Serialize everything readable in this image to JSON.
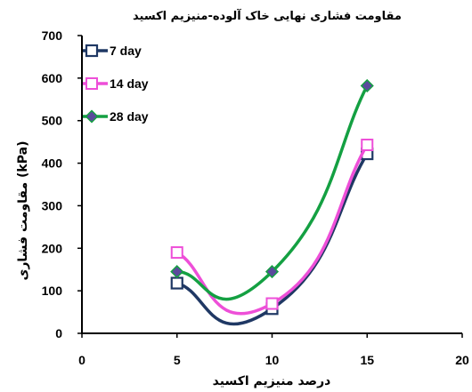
{
  "chart_data": {
    "type": "scatter",
    "title": "مقاومت فشاری نهایی خاک آلوده-منیزیم اکسید",
    "xlabel": "درصد منیزیم اکسید",
    "ylabel": "مقاومت فشاری (kPa)",
    "xlim": [
      0,
      20
    ],
    "ylim": [
      0,
      700
    ],
    "x_ticks": [
      "0",
      "5",
      "10",
      "15",
      "20"
    ],
    "y_ticks": [
      "0",
      "100",
      "200",
      "300",
      "400",
      "500",
      "600",
      "700"
    ],
    "grid": false,
    "legend_position": "top-left",
    "smoothed_lines": true,
    "series": [
      {
        "name": "7 day",
        "color": "#1f3864",
        "marker": "square",
        "x": [
          5,
          10,
          15
        ],
        "y": [
          118,
          58,
          422
        ]
      },
      {
        "name": "14 day",
        "color": "#ee4fd8",
        "marker": "square-hollow",
        "x": [
          5,
          10,
          15
        ],
        "y": [
          190,
          70,
          443
        ]
      },
      {
        "name": "28 day",
        "color": "#14a042",
        "marker": "diamond",
        "x": [
          5,
          10,
          15
        ],
        "y": [
          145,
          145,
          582
        ]
      }
    ]
  }
}
